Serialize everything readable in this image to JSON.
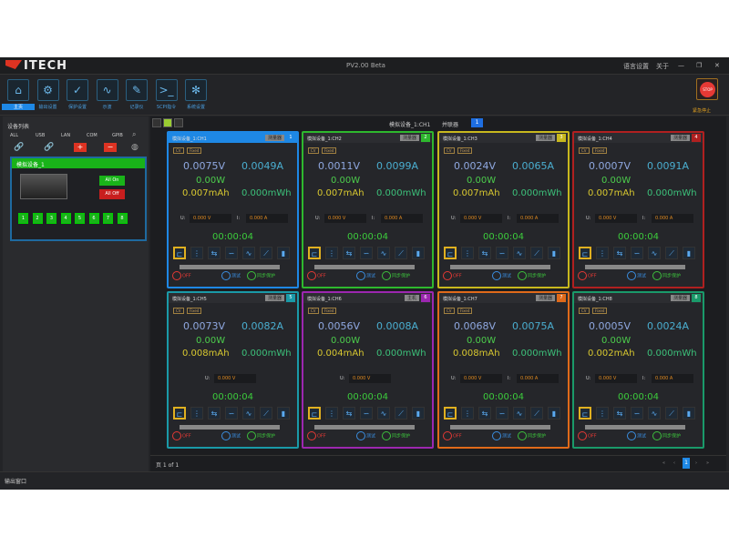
{
  "window": {
    "brand": "ITECH",
    "title": "PV2.00 Beta",
    "language": "语言设置",
    "about": "关于",
    "min": "—",
    "max": "❐",
    "close": "✕"
  },
  "toolbar": [
    {
      "label": "主页",
      "icon": "home-icon",
      "glyph": "⌂",
      "active": true
    },
    {
      "label": "输出设置",
      "icon": "output-settings-icon",
      "glyph": "⚙"
    },
    {
      "label": "保护设置",
      "icon": "shield-icon",
      "glyph": "✓"
    },
    {
      "label": "示波",
      "icon": "oscilloscope-icon",
      "glyph": "∿"
    },
    {
      "label": "记录仪",
      "icon": "recorder-icon",
      "glyph": "✎"
    },
    {
      "label": "SCPI指令",
      "icon": "terminal-icon",
      "glyph": ">_"
    },
    {
      "label": "系统设置",
      "icon": "gear-icon",
      "glyph": "✻"
    }
  ],
  "stop": {
    "label": "紧急停止",
    "button": "STOP"
  },
  "sidebar": {
    "title": "设备列表",
    "filters": [
      "ALL",
      "USB",
      "LAN",
      "COM",
      "GPIB"
    ],
    "device": {
      "name": "模拟设备_1",
      "all_on": "All On",
      "all_off": "All Off",
      "channels": [
        "1",
        "2",
        "3",
        "4",
        "5",
        "6",
        "7",
        "8"
      ]
    }
  },
  "content": {
    "selected_channel": "模拟设备_1:CH1",
    "channel_label": "并联器",
    "channel_number": "1"
  },
  "channels": [
    {
      "title": "模拟设备_1:CH1",
      "badge": "测量器",
      "num": "1",
      "color": "#1e88e5",
      "mode": "CV",
      "range": "Fixed",
      "voltage": "0.0075V",
      "current": "0.0049A",
      "power": "0.00W",
      "mah": "0.007mAh",
      "mwh": "0.000mWh",
      "u": "0.000 V",
      "i": "0.000 A",
      "time": "00:00:04"
    },
    {
      "title": "模拟设备_1:CH2",
      "badge": "测量器",
      "num": "2",
      "color": "#2eb82e",
      "mode": "CV",
      "range": "Fixed",
      "voltage": "0.0011V",
      "current": "0.0099A",
      "power": "0.00W",
      "mah": "0.007mAh",
      "mwh": "0.000mWh",
      "u": "0.000 V",
      "i": "0.000 A",
      "time": "00:00:04"
    },
    {
      "title": "模拟设备_1:CH3",
      "badge": "测量器",
      "num": "3",
      "color": "#c8b81e",
      "mode": "CV",
      "range": "Fixed",
      "voltage": "0.0024V",
      "current": "0.0065A",
      "power": "0.00W",
      "mah": "0.007mAh",
      "mwh": "0.000mWh",
      "u": "0.000 V",
      "i": "0.000 A",
      "time": "00:00:04"
    },
    {
      "title": "模拟设备_1:CH4",
      "badge": "测量器",
      "num": "4",
      "color": "#b02020",
      "mode": "CV",
      "range": "Fixed",
      "voltage": "0.0007V",
      "current": "0.0091A",
      "power": "0.00W",
      "mah": "0.007mAh",
      "mwh": "0.000mWh",
      "u": "0.000 V",
      "i": "0.000 A",
      "time": "00:00:04"
    },
    {
      "title": "模拟设备_1:CH5",
      "badge": "测量器",
      "num": "5",
      "color": "#1a9aa8",
      "mode": "CV",
      "range": "Fixed",
      "voltage": "0.0073V",
      "current": "0.0082A",
      "power": "0.00W",
      "mah": "0.008mAh",
      "mwh": "0.000mWh",
      "u": "0.000 V",
      "time": "00:00:04"
    },
    {
      "title": "模拟设备_1:CH6",
      "badge": "主机",
      "num": "6",
      "color": "#9c27b0",
      "mode": "CV",
      "range": "Fixed",
      "voltage": "0.0056V",
      "current": "0.0008A",
      "power": "0.00W",
      "mah": "0.004mAh",
      "mwh": "0.000mWh",
      "u": "0.000 V",
      "time": "00:00:04"
    },
    {
      "title": "模拟设备_1:CH7",
      "badge": "测量器",
      "num": "7",
      "color": "#e06a1a",
      "mode": "CV",
      "range": "Fixed",
      "voltage": "0.0068V",
      "current": "0.0075A",
      "power": "0.00W",
      "mah": "0.008mAh",
      "mwh": "0.000mWh",
      "u": "0.000 V",
      "i": "0.000 A",
      "time": "00:00:04"
    },
    {
      "title": "模拟设备_1:CH8",
      "badge": "测量器",
      "num": "8",
      "color": "#1a9a6a",
      "mode": "CV",
      "range": "Fixed",
      "voltage": "0.0005V",
      "current": "0.0024A",
      "power": "0.00W",
      "mah": "0.002mAh",
      "mwh": "0.000mWh",
      "u": "0.000 V",
      "i": "0.000 A",
      "time": "00:00:04"
    }
  ],
  "card_labels": {
    "u": "U:",
    "i": "I:",
    "off": "OFF",
    "test": "测试",
    "sync": "同步保护"
  },
  "pager": {
    "text": "页 1 of 1",
    "current": "1"
  },
  "output": {
    "title": "输出窗口"
  }
}
